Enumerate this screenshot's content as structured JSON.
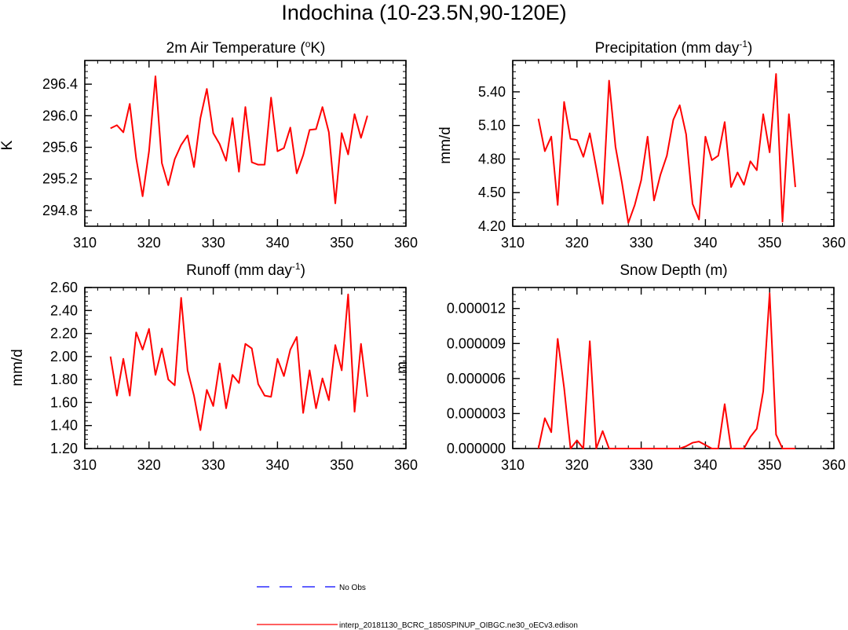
{
  "title": "Indochina (10-23.5N,90-120E)",
  "colors": {
    "model": "#ff0000",
    "obs": "#0000ff",
    "axis": "#000000"
  },
  "legend": {
    "obs_label": "No Obs",
    "model_label": "interp_20181130_BCRC_1850SPINUP_OIBGC.ne30_oECv3.edison"
  },
  "chart_data": [
    {
      "type": "line",
      "title_main": "2m Air Temperature (",
      "title_sup": "o",
      "title_end": "K)",
      "ylabel": "K",
      "xlim": [
        310,
        360
      ],
      "xticks": [
        310,
        320,
        330,
        340,
        350,
        360
      ],
      "ylim": [
        294.6,
        296.7
      ],
      "yticks": [
        "294.8",
        "295.2",
        "295.6",
        "296.0",
        "296.4"
      ],
      "x": [
        314,
        315,
        316,
        317,
        318,
        319,
        320,
        321,
        322,
        323,
        324,
        325,
        326,
        327,
        328,
        329,
        330,
        331,
        332,
        333,
        334,
        335,
        336,
        337,
        338,
        339,
        340,
        341,
        342,
        343,
        344,
        345,
        346,
        347,
        348,
        349,
        350,
        351,
        352,
        353,
        354
      ],
      "series": [
        {
          "name": "model",
          "values": [
            295.84,
            295.88,
            295.79,
            296.15,
            295.46,
            294.98,
            295.55,
            296.5,
            295.4,
            295.12,
            295.45,
            295.63,
            295.75,
            295.35,
            295.97,
            296.34,
            295.78,
            295.64,
            295.43,
            295.97,
            295.29,
            296.11,
            295.41,
            295.38,
            295.38,
            296.23,
            295.55,
            295.59,
            295.85,
            295.27,
            295.5,
            295.82,
            295.83,
            296.11,
            295.79,
            294.89,
            295.78,
            295.51,
            296.02,
            295.72,
            296.0
          ]
        }
      ]
    },
    {
      "type": "line",
      "title_main": "Precipitation (mm day",
      "title_sup": "-1",
      "title_end": ")",
      "ylabel": "mm/d",
      "xlim": [
        310,
        360
      ],
      "xticks": [
        310,
        320,
        330,
        340,
        350,
        360
      ],
      "ylim": [
        4.2,
        5.68
      ],
      "yticks": [
        "4.20",
        "4.50",
        "4.80",
        "5.10",
        "5.40"
      ],
      "x": [
        314,
        315,
        316,
        317,
        318,
        319,
        320,
        321,
        322,
        323,
        324,
        325,
        326,
        327,
        328,
        329,
        330,
        331,
        332,
        333,
        334,
        335,
        336,
        337,
        338,
        339,
        340,
        341,
        342,
        343,
        344,
        345,
        346,
        347,
        348,
        349,
        350,
        351,
        352,
        353,
        354
      ],
      "series": [
        {
          "name": "model",
          "values": [
            5.16,
            4.87,
            5.0,
            4.39,
            5.31,
            4.98,
            4.97,
            4.82,
            5.03,
            4.72,
            4.4,
            5.5,
            4.91,
            4.59,
            4.23,
            4.39,
            4.61,
            5.0,
            4.43,
            4.66,
            4.83,
            5.15,
            5.28,
            5.02,
            4.4,
            4.26,
            5.0,
            4.79,
            4.83,
            5.13,
            4.55,
            4.68,
            4.57,
            4.78,
            4.7,
            5.2,
            4.86,
            5.56,
            4.24,
            5.2,
            4.55
          ]
        }
      ]
    },
    {
      "type": "line",
      "title_main": "Runoff (mm day",
      "title_sup": "-1",
      "title_end": ")",
      "ylabel": "mm/d",
      "xlim": [
        310,
        360
      ],
      "xticks": [
        310,
        320,
        330,
        340,
        350,
        360
      ],
      "ylim": [
        1.2,
        2.6
      ],
      "yticks": [
        "1.20",
        "1.40",
        "1.60",
        "1.80",
        "2.00",
        "2.20",
        "2.40",
        "2.60"
      ],
      "x": [
        314,
        315,
        316,
        317,
        318,
        319,
        320,
        321,
        322,
        323,
        324,
        325,
        326,
        327,
        328,
        329,
        330,
        331,
        332,
        333,
        334,
        335,
        336,
        337,
        338,
        339,
        340,
        341,
        342,
        343,
        344,
        345,
        346,
        347,
        348,
        349,
        350,
        351,
        352,
        353,
        354
      ],
      "series": [
        {
          "name": "model",
          "values": [
            2.0,
            1.66,
            1.98,
            1.66,
            2.21,
            2.06,
            2.24,
            1.84,
            2.07,
            1.8,
            1.75,
            2.51,
            1.88,
            1.66,
            1.36,
            1.71,
            1.57,
            1.94,
            1.55,
            1.84,
            1.77,
            2.11,
            2.07,
            1.76,
            1.66,
            1.65,
            1.98,
            1.83,
            2.06,
            2.17,
            1.51,
            1.88,
            1.55,
            1.81,
            1.62,
            2.1,
            1.88,
            2.54,
            1.52,
            2.11,
            1.65
          ]
        }
      ]
    },
    {
      "type": "line",
      "title_main": "Snow Depth (m)",
      "title_sup": "",
      "title_end": "",
      "ylabel": "m",
      "xlim": [
        310,
        360
      ],
      "xticks": [
        310,
        320,
        330,
        340,
        350,
        360
      ],
      "ylim": [
        0,
        1.38e-05
      ],
      "yticks": [
        "0.000000",
        "0.000003",
        "0.000006",
        "0.000009",
        "0.000012"
      ],
      "x": [
        314,
        315,
        316,
        317,
        318,
        319,
        320,
        321,
        322,
        323,
        324,
        325,
        326,
        327,
        328,
        329,
        330,
        331,
        332,
        333,
        334,
        335,
        336,
        337,
        338,
        339,
        340,
        341,
        342,
        343,
        344,
        345,
        346,
        347,
        348,
        349,
        350,
        351,
        352,
        353,
        354
      ],
      "series": [
        {
          "name": "model",
          "values": [
            0,
            2.6e-06,
            1.4e-06,
            9.4e-06,
            5.2e-06,
            0,
            7e-07,
            0,
            9.2e-06,
            0,
            1.5e-06,
            0,
            0,
            0,
            0,
            0,
            0,
            0,
            0,
            0,
            0,
            0,
            0,
            2e-07,
            5e-07,
            6e-07,
            3e-07,
            0,
            0,
            3.8e-06,
            0,
            0,
            0,
            1e-06,
            1.7e-06,
            4.9e-06,
            1.33e-05,
            1.2e-06,
            0,
            0,
            0
          ]
        }
      ]
    }
  ]
}
